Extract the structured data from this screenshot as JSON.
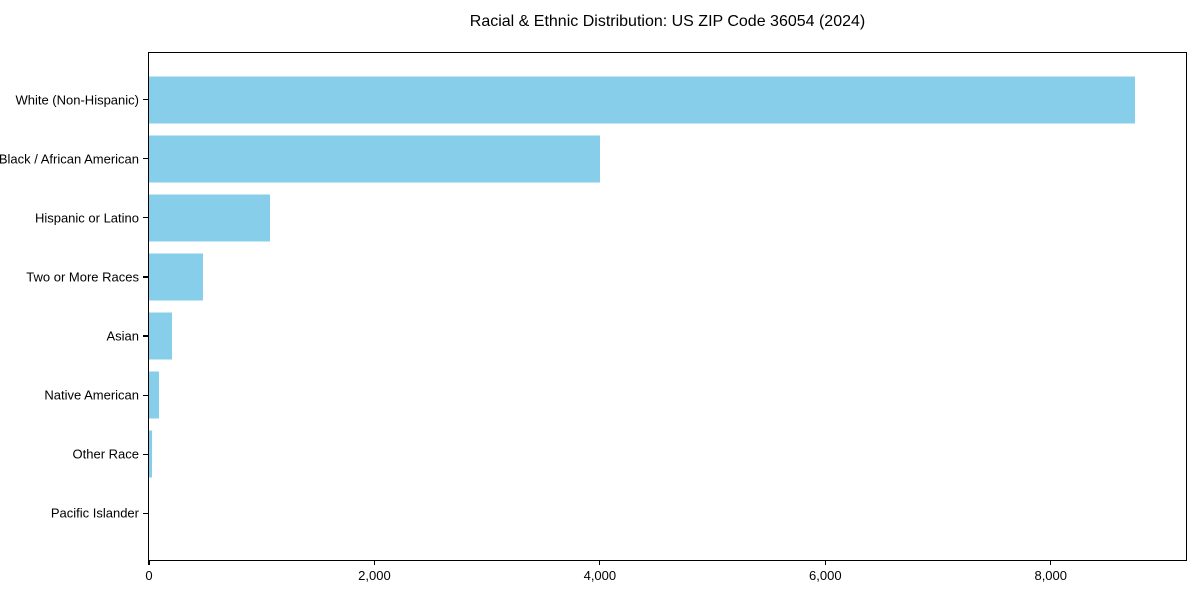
{
  "title": "Racial & Ethnic Distribution: US ZIP Code 36054 (2024)",
  "chart_data": {
    "type": "bar",
    "orientation": "horizontal",
    "title": "Racial & Ethnic Distribution: US ZIP Code 36054 (2024)",
    "categories": [
      "White (Non-Hispanic)",
      "Black / African American",
      "Hispanic or Latino",
      "Two or More Races",
      "Asian",
      "Native American",
      "Other Race",
      "Pacific Islander"
    ],
    "values": [
      8750,
      4000,
      1070,
      480,
      200,
      90,
      25,
      0
    ],
    "xlabel": "",
    "ylabel": "",
    "xlim": [
      0,
      9200
    ],
    "xticks": {
      "values": [
        0,
        2000,
        4000,
        6000,
        8000
      ],
      "labels": [
        "0",
        "2,000",
        "4,000",
        "6,000",
        "8,000"
      ]
    },
    "grid": false,
    "legend": null,
    "bar_color": "#87CEEB",
    "axis_color": "#000000",
    "background_color": "#FFFFFF"
  }
}
